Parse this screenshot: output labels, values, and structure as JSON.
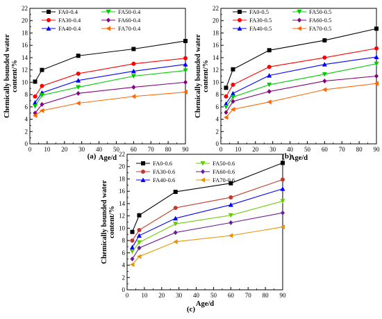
{
  "chart_data": [
    {
      "type": "line",
      "panel_label": "(a)",
      "xlabel": "Age/d",
      "ylabel": [
        "Chemically bounded water",
        "content/%"
      ],
      "xlim": [
        0,
        90
      ],
      "ylim": [
        0,
        22
      ],
      "xticks": [
        0,
        10,
        20,
        30,
        40,
        50,
        60,
        70,
        80,
        90
      ],
      "yticks": [
        0,
        2,
        4,
        6,
        8,
        10,
        12,
        14,
        16,
        18,
        20,
        22
      ],
      "x": [
        3,
        7,
        28,
        60,
        90
      ],
      "series": [
        {
          "name": "FA0-0.4",
          "color": "#000000",
          "marker": "square",
          "values": [
            10.1,
            12.0,
            14.3,
            15.4,
            16.7
          ]
        },
        {
          "name": "FA30-0.4",
          "color": "#ff0000",
          "marker": "circle",
          "values": [
            7.7,
            9.4,
            11.4,
            13.0,
            13.9
          ]
        },
        {
          "name": "FA40-0.4",
          "color": "#0000ff",
          "marker": "triangle-up",
          "values": [
            6.7,
            8.3,
            10.3,
            11.8,
            12.9
          ]
        },
        {
          "name": "FA50-0.4",
          "color": "#00cc00",
          "marker": "triangle-down",
          "values": [
            6.1,
            7.9,
            9.2,
            11.0,
            11.9
          ]
        },
        {
          "name": "FA60-0.4",
          "color": "#800080",
          "marker": "diamond",
          "values": [
            5.0,
            6.4,
            8.2,
            9.2,
            10.0
          ]
        },
        {
          "name": "FA70-0.4",
          "color": "#ff6600",
          "marker": "triangle-left",
          "values": [
            4.6,
            5.4,
            6.6,
            7.7,
            8.4
          ]
        }
      ]
    },
    {
      "type": "line",
      "panel_label": "(b)",
      "xlabel": "Age/d",
      "ylabel": [
        "Chemically bounded water",
        "content/%"
      ],
      "xlim": [
        0,
        90
      ],
      "ylim": [
        0,
        22
      ],
      "xticks": [
        0,
        10,
        20,
        30,
        40,
        50,
        60,
        70,
        80,
        90
      ],
      "yticks": [
        0,
        2,
        4,
        6,
        8,
        10,
        12,
        14,
        16,
        18,
        20,
        22
      ],
      "x": [
        3,
        7,
        28,
        60,
        90
      ],
      "series": [
        {
          "name": "FA0-0.5",
          "color": "#000000",
          "marker": "square",
          "values": [
            9.1,
            12.1,
            15.2,
            16.8,
            18.7
          ]
        },
        {
          "name": "FA30-0.5",
          "color": "#ff0000",
          "marker": "circle",
          "values": [
            7.7,
            9.6,
            12.5,
            14.0,
            15.5
          ]
        },
        {
          "name": "FA40-0.5",
          "color": "#0000ff",
          "marker": "triangle-up",
          "values": [
            6.5,
            8.2,
            11.1,
            12.9,
            14.1
          ]
        },
        {
          "name": "FA50-0.5",
          "color": "#00cc00",
          "marker": "triangle-down",
          "values": [
            6.0,
            7.6,
            9.6,
            11.3,
            13.0
          ]
        },
        {
          "name": "FA60-0.5",
          "color": "#800080",
          "marker": "diamond",
          "values": [
            5.1,
            6.9,
            8.5,
            10.2,
            11.0
          ]
        },
        {
          "name": "FA70-0.5",
          "color": "#ff6600",
          "marker": "triangle-left",
          "values": [
            4.3,
            5.6,
            6.8,
            8.8,
            9.8
          ]
        }
      ]
    },
    {
      "type": "line",
      "panel_label": "(c)",
      "xlabel": "Age/d",
      "ylabel": [
        "Chemically bounded water",
        "content/%"
      ],
      "xlim": [
        0,
        90
      ],
      "ylim": [
        0,
        22
      ],
      "xticks": [
        0,
        10,
        20,
        30,
        40,
        50,
        60,
        70,
        80,
        90
      ],
      "yticks": [
        0,
        2,
        4,
        6,
        8,
        10,
        12,
        14,
        16,
        18,
        20,
        22
      ],
      "x": [
        3,
        7,
        28,
        60,
        90
      ],
      "series": [
        {
          "name": "FA0-0.6",
          "color": "#000000",
          "marker": "square",
          "values": [
            9.4,
            12.1,
            15.9,
            17.3,
            20.6
          ]
        },
        {
          "name": "FA30-0.6",
          "color": "#c0392b",
          "marker": "circle",
          "values": [
            8.0,
            9.7,
            13.3,
            15.0,
            17.9
          ]
        },
        {
          "name": "FA40-0.6",
          "color": "#0000ff",
          "marker": "triangle-up",
          "values": [
            6.9,
            8.8,
            11.6,
            13.8,
            16.4
          ]
        },
        {
          "name": "FA50-0.6",
          "color": "#66cc00",
          "marker": "triangle-down",
          "values": [
            6.2,
            7.7,
            10.7,
            12.1,
            14.4
          ]
        },
        {
          "name": "FA60-0.6",
          "color": "#6a1b9a",
          "marker": "diamond",
          "values": [
            5.0,
            6.8,
            9.3,
            10.9,
            12.5
          ]
        },
        {
          "name": "FA70-0.6",
          "color": "#e69500",
          "marker": "triangle-left",
          "values": [
            4.1,
            5.4,
            7.8,
            8.8,
            10.2
          ]
        }
      ]
    }
  ]
}
